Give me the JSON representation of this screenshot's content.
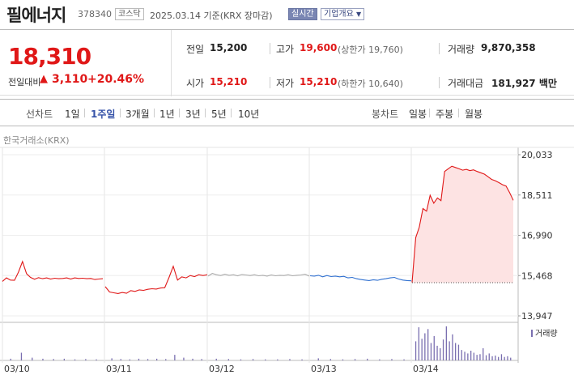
{
  "header": {
    "name": "필에너지",
    "code": "378340",
    "market": "코스닥",
    "date_text": "2025.03.14  기준(KRX 장마감)",
    "realtime_label": "실시간",
    "company_info_label": "기업개요"
  },
  "summary": {
    "price": "18,310",
    "change_label": "전일대비",
    "change_arrow": "▲",
    "change_value": "3,110",
    "change_pct": "+20.46%",
    "prev_close_label": "전일",
    "prev_close": "15,200",
    "high_label": "고가",
    "high": "19,600",
    "upper_limit_text": "(상한가 19,760)",
    "volume_label": "거래량",
    "volume": "9,870,358",
    "open_label": "시가",
    "open": "15,210",
    "low_label": "저가",
    "low": "15,210",
    "lower_limit_text": "(하한가 10,640)",
    "amount_label": "거래대금",
    "amount": "181,927 백만"
  },
  "tabs": {
    "line_head": "선차트",
    "line_items": [
      "1일",
      "1주일",
      "3개월",
      "1년",
      "3년",
      "5년",
      "10년"
    ],
    "selected": "1주일",
    "candle_head": "봉차트",
    "candle_items": [
      "일봉",
      "주봉",
      "월봉"
    ]
  },
  "chart": {
    "exchange_label": "한국거래소(KRX)",
    "volume_legend": "거래량",
    "colors": {
      "up": "#e01818",
      "down": "#2e6fd0",
      "flat": "#aaaaaa",
      "fill": "#fde3e3",
      "volume": "#7a6fb0"
    }
  },
  "chart_data": {
    "type": "line",
    "x_ticks": [
      "03/10",
      "03/11",
      "03/12",
      "03/13",
      "03/14"
    ],
    "y_ticks": [
      20033,
      18511,
      16990,
      15468,
      13947
    ],
    "ylim": [
      13947,
      20033
    ],
    "reference_price": 15200,
    "days": [
      {
        "date": "03/10",
        "trend": "up",
        "points": [
          15250,
          15380,
          15300,
          15290,
          15600,
          16000,
          15540,
          15400,
          15330,
          15390,
          15350,
          15380,
          15340,
          15370,
          15350,
          15360,
          15380,
          15340,
          15380,
          15360,
          15370,
          15350,
          15360,
          15320,
          15340,
          15350
        ]
      },
      {
        "date": "03/11",
        "trend": "up",
        "points": [
          15050,
          14850,
          14820,
          14790,
          14830,
          14800,
          14900,
          14870,
          14930,
          14910,
          14950,
          14970,
          14960,
          15000,
          15010,
          15400,
          15820,
          15300,
          15420,
          15380,
          15470,
          15430,
          15500,
          15470,
          15500
        ]
      },
      {
        "date": "03/12",
        "trend": "flat",
        "points": [
          15450,
          15550,
          15500,
          15470,
          15520,
          15480,
          15500,
          15460,
          15510,
          15490,
          15470,
          15500,
          15460,
          15480,
          15450,
          15490,
          15460,
          15480,
          15470,
          15500,
          15460,
          15480,
          15490,
          15520,
          15450
        ]
      },
      {
        "date": "03/13",
        "trend": "down",
        "points": [
          15460,
          15450,
          15480,
          15420,
          15470,
          15430,
          15450,
          15420,
          15440,
          15380,
          15400,
          15350,
          15320,
          15300,
          15280,
          15310,
          15290,
          15330,
          15350,
          15380,
          15400,
          15340,
          15300,
          15280,
          15270
        ]
      },
      {
        "date": "03/14",
        "trend": "up",
        "points": [
          15210,
          16900,
          17300,
          18000,
          17900,
          18500,
          18200,
          18400,
          18300,
          19400,
          19500,
          19600,
          19550,
          19500,
          19450,
          19480,
          19430,
          19460,
          19400,
          19350,
          19300,
          19200,
          19100,
          19050,
          18980,
          18900,
          18850,
          18600,
          18310
        ]
      }
    ],
    "volume_relative": {
      "03/10": [
        0.05,
        0.22,
        0.08,
        0.05,
        0.04,
        0.05,
        0.03,
        0.04,
        0.03
      ],
      "03/11": [
        0.06,
        0.04,
        0.03,
        0.05,
        0.04,
        0.05,
        0.04,
        0.16,
        0.08,
        0.05,
        0.04
      ],
      "03/12": [
        0.05,
        0.04,
        0.03,
        0.04,
        0.03,
        0.03,
        0.04,
        0.03
      ],
      "03/13": [
        0.06,
        0.04,
        0.03,
        0.04,
        0.05,
        0.03,
        0.04,
        0.03
      ],
      "03/14": [
        0.55,
        0.95,
        0.62,
        0.78,
        0.9,
        0.5,
        0.7,
        0.42,
        0.35,
        0.6,
        0.98,
        0.55,
        0.75,
        0.5,
        0.45,
        0.3,
        0.25,
        0.2,
        0.28,
        0.22,
        0.16,
        0.18,
        0.35,
        0.15,
        0.2,
        0.12,
        0.14,
        0.1,
        0.18,
        0.1,
        0.12,
        0.08
      ]
    }
  }
}
